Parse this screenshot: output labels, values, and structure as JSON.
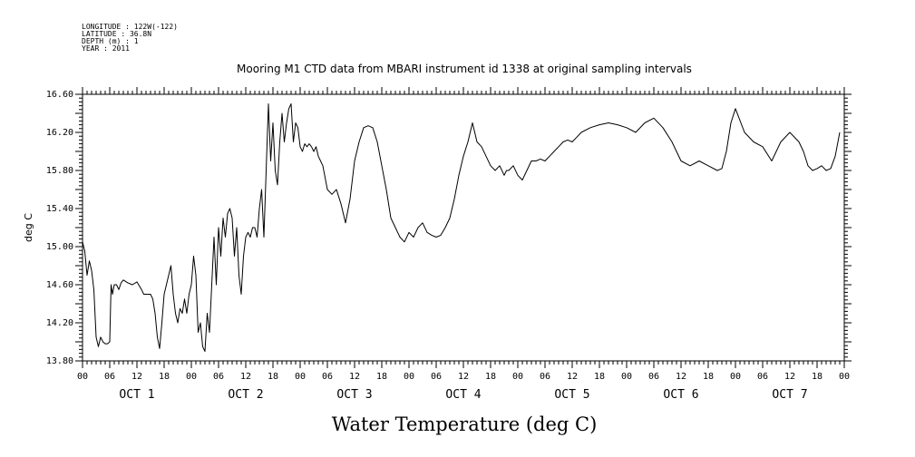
{
  "meta_lines": [
    "LONGITUDE : 122W(-122)",
    "LATITUDE : 36.8N",
    "DEPTH (m) : 1",
    "YEAR : 2011"
  ],
  "chart_data": {
    "type": "line",
    "title": "Mooring M1 CTD data from MBARI instrument id 1338 at original sampling intervals",
    "xlabel": "Water Temperature (deg C)",
    "ylabel": "deg C",
    "ylim": [
      13.8,
      16.6
    ],
    "xlim": [
      0,
      168
    ],
    "y_ticks": [
      "13.80",
      "14.20",
      "14.60",
      "15.00",
      "15.40",
      "15.80",
      "16.20",
      "16.60"
    ],
    "x_hour_ticks": [
      "00",
      "06",
      "12",
      "18",
      "00",
      "06",
      "12",
      "18",
      "00",
      "06",
      "12",
      "18",
      "00",
      "06",
      "12",
      "18",
      "00",
      "06",
      "12",
      "18",
      "00",
      "06",
      "12",
      "18",
      "00",
      "06",
      "12",
      "18",
      "00"
    ],
    "x_day_labels": [
      "OCT 1",
      "OCT 2",
      "OCT 3",
      "OCT 4",
      "OCT 5",
      "OCT 6",
      "OCT 7"
    ],
    "line_color": "#000000",
    "series": [
      {
        "x": [
          0,
          0.5,
          1,
          1.5,
          2,
          2.5,
          3,
          3.5,
          4,
          4.5,
          5,
          5.5,
          6,
          6.3,
          6.6,
          7,
          7.5,
          8,
          8.5,
          9,
          10,
          11,
          12,
          13,
          13.5,
          14,
          15,
          15.5,
          16,
          16.5,
          17,
          17.5,
          18,
          18.5,
          19,
          19.5,
          20,
          20.5,
          21,
          21.5,
          22,
          22.5,
          23,
          23.5,
          24,
          24.5,
          25,
          25.5,
          26,
          26.5,
          27,
          27.5,
          28,
          28.5,
          29,
          29.5,
          30,
          30.5,
          31,
          31.5,
          32,
          32.5,
          33,
          33.5,
          34,
          34.5,
          35,
          35.5,
          36,
          36.5,
          37,
          37.5,
          38,
          38.5,
          39,
          39.5,
          40,
          40.5,
          41,
          41.5,
          42,
          42.5,
          43,
          43.5,
          44,
          44.5,
          45,
          45.5,
          46,
          46.5,
          47,
          47.5,
          48,
          48.5,
          49,
          49.5,
          50,
          50.5,
          51,
          51.5,
          52,
          52.5,
          53,
          54,
          55,
          56,
          57,
          58,
          59,
          60,
          61,
          62,
          63,
          64,
          65,
          66,
          67,
          68,
          69,
          70,
          71,
          72,
          73,
          74,
          75,
          76,
          77,
          78,
          79,
          80,
          81,
          82,
          83,
          84,
          85,
          86,
          87,
          88,
          89,
          90,
          91,
          92,
          93,
          93.5,
          94,
          95,
          96,
          97,
          98,
          99,
          100,
          101,
          102,
          103,
          104,
          105,
          106,
          107,
          108,
          109,
          110,
          112,
          114,
          116,
          118,
          120,
          122,
          124,
          126,
          128,
          130,
          132,
          134,
          136,
          138,
          140,
          141,
          142,
          143,
          144,
          146,
          148,
          150,
          152,
          154,
          156,
          158,
          159,
          160,
          161,
          162,
          163,
          164,
          165,
          166,
          167
        ],
        "y": [
          15.05,
          14.95,
          14.7,
          14.85,
          14.75,
          14.55,
          14.05,
          13.95,
          14.05,
          14.0,
          13.98,
          13.98,
          14.0,
          14.6,
          14.5,
          14.6,
          14.6,
          14.55,
          14.62,
          14.65,
          14.62,
          14.6,
          14.63,
          14.55,
          14.5,
          14.5,
          14.5,
          14.45,
          14.3,
          14.05,
          13.93,
          14.2,
          14.5,
          14.6,
          14.7,
          14.8,
          14.5,
          14.3,
          14.2,
          14.35,
          14.3,
          14.45,
          14.3,
          14.5,
          14.6,
          14.9,
          14.7,
          14.1,
          14.2,
          13.95,
          13.9,
          14.3,
          14.1,
          14.6,
          15.1,
          14.6,
          15.2,
          14.9,
          15.3,
          15.1,
          15.35,
          15.4,
          15.3,
          14.9,
          15.2,
          14.7,
          14.5,
          14.9,
          15.1,
          15.15,
          15.1,
          15.2,
          15.2,
          15.1,
          15.4,
          15.6,
          15.1,
          15.8,
          16.5,
          15.9,
          16.3,
          15.8,
          15.65,
          16.1,
          16.4,
          16.1,
          16.3,
          16.45,
          16.5,
          16.1,
          16.3,
          16.25,
          16.05,
          16.0,
          16.08,
          16.05,
          16.08,
          16.05,
          16.0,
          16.05,
          15.95,
          15.9,
          15.85,
          15.6,
          15.55,
          15.6,
          15.45,
          15.25,
          15.5,
          15.9,
          16.1,
          16.25,
          16.27,
          16.25,
          16.1,
          15.85,
          15.6,
          15.3,
          15.2,
          15.1,
          15.05,
          15.15,
          15.1,
          15.2,
          15.25,
          15.15,
          15.12,
          15.1,
          15.12,
          15.2,
          15.3,
          15.5,
          15.75,
          15.95,
          16.1,
          16.3,
          16.1,
          16.05,
          15.95,
          15.85,
          15.8,
          15.85,
          15.75,
          15.8,
          15.8,
          15.85,
          15.75,
          15.7,
          15.8,
          15.9,
          15.9,
          15.92,
          15.9,
          15.95,
          16.0,
          16.05,
          16.1,
          16.12,
          16.1,
          16.15,
          16.2,
          16.25,
          16.28,
          16.3,
          16.28,
          16.25,
          16.2,
          16.3,
          16.35,
          16.25,
          16.1,
          15.9,
          15.85,
          15.9,
          15.85,
          15.8,
          15.82,
          16.0,
          16.3,
          16.45,
          16.2,
          16.1,
          16.05,
          15.9,
          16.1,
          16.2,
          16.1,
          16.0,
          15.85,
          15.8,
          15.82,
          15.85,
          15.8,
          15.82,
          15.95,
          16.2
        ]
      }
    ]
  }
}
